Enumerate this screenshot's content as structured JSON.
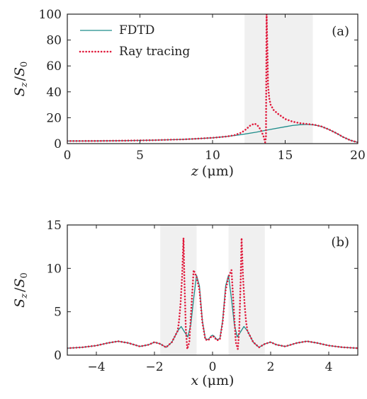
{
  "chart_data": [
    {
      "type": "line",
      "panel_label": "(a)",
      "xlabel_var": "z",
      "xlabel_unit": "(μm)",
      "ylabel_var": "S",
      "ylabel_sub": "z",
      "ylabel_den": "S",
      "ylabel_den_sub": "0",
      "xlim": [
        0,
        20
      ],
      "ylim": [
        0,
        100
      ],
      "xticks": [
        0,
        5,
        10,
        15,
        20
      ],
      "yticks": [
        0,
        20,
        40,
        60,
        80,
        100
      ],
      "xtick_labels": [
        "0",
        "5",
        "10",
        "15",
        "20"
      ],
      "ytick_labels": [
        "0",
        "20",
        "40",
        "60",
        "80",
        "100"
      ],
      "shaded_regions": [
        [
          12.2,
          16.9
        ]
      ],
      "legend_position": "top-left",
      "series": [
        {
          "name": "FDTD",
          "color": "#1e8c8a",
          "style": "solid",
          "x": [
            0,
            2,
            4,
            6,
            8,
            9,
            10,
            11,
            12,
            13,
            14,
            15,
            15.5,
            16,
            16.5,
            17,
            17.5,
            18,
            18.5,
            19,
            19.5,
            20
          ],
          "y": [
            2,
            2.1,
            2.3,
            2.7,
            3.3,
            3.8,
            4.5,
            5.5,
            7,
            8.8,
            11,
            13,
            14,
            14.6,
            14.8,
            14.4,
            13.2,
            11,
            8.2,
            5,
            2.5,
            1
          ]
        },
        {
          "name": "Ray tracing",
          "color": "#e01b3c",
          "style": "dotted",
          "x": [
            0,
            2,
            4,
            6,
            8,
            9,
            10,
            11,
            11.5,
            12,
            12.3,
            12.6,
            12.9,
            13.1,
            13.3,
            13.5,
            13.62,
            13.68,
            13.72,
            13.78,
            13.82,
            13.9,
            14,
            14.2,
            14.5,
            15,
            15.5,
            16,
            16.5,
            17,
            17.5,
            18,
            18.5,
            19,
            19.5,
            20
          ],
          "y": [
            2,
            2.1,
            2.3,
            2.7,
            3.3,
            3.8,
            4.5,
            5.5,
            6.5,
            8.5,
            11,
            14,
            15.5,
            14,
            11,
            6,
            1,
            5,
            100,
            70,
            45,
            35,
            30,
            26,
            23,
            19,
            17,
            15.8,
            15.2,
            14.6,
            13.2,
            11,
            8.2,
            5,
            2.5,
            1
          ]
        }
      ]
    },
    {
      "type": "line",
      "panel_label": "(b)",
      "xlabel_var": "x",
      "xlabel_unit": "(μm)",
      "ylabel_var": "S",
      "ylabel_sub": "z",
      "ylabel_den": "S",
      "ylabel_den_sub": "0",
      "xlim": [
        -5,
        5
      ],
      "ylim": [
        0,
        15
      ],
      "xticks": [
        -4,
        -2,
        0,
        2,
        4
      ],
      "yticks": [
        0,
        5,
        10,
        15
      ],
      "xtick_labels": [
        "−4",
        "−2",
        "0",
        "2",
        "4"
      ],
      "ytick_labels": [
        "0",
        "5",
        "10",
        "15"
      ],
      "shaded_regions": [
        [
          -1.8,
          -0.55
        ],
        [
          0.55,
          1.8
        ]
      ],
      "series": [
        {
          "name": "FDTD",
          "color": "#1e8c8a",
          "style": "solid",
          "x": [
            -5,
            -4.5,
            -4,
            -3.6,
            -3.25,
            -2.9,
            -2.5,
            -2.2,
            -2.0,
            -1.8,
            -1.6,
            -1.4,
            -1.2,
            -1.08,
            -0.95,
            -0.85,
            -0.75,
            -0.65,
            -0.55,
            -0.45,
            -0.35,
            -0.25,
            -0.15,
            -0.05,
            0,
            0.05,
            0.15,
            0.25,
            0.35,
            0.45,
            0.55,
            0.65,
            0.75,
            0.85,
            0.95,
            1.08,
            1.2,
            1.4,
            1.6,
            1.8,
            2.0,
            2.2,
            2.5,
            2.9,
            3.25,
            3.6,
            4,
            4.5,
            5
          ],
          "y": [
            0.8,
            0.9,
            1.1,
            1.4,
            1.6,
            1.4,
            1.0,
            1.2,
            1.5,
            1.3,
            0.9,
            1.5,
            2.8,
            3.3,
            2.6,
            2.1,
            3.5,
            6.5,
            9.2,
            8.0,
            4.0,
            1.9,
            1.8,
            2.2,
            2.3,
            2.2,
            1.8,
            1.9,
            4.0,
            8.0,
            9.2,
            6.5,
            3.5,
            2.1,
            2.6,
            3.3,
            2.8,
            1.5,
            0.9,
            1.3,
            1.5,
            1.2,
            1.0,
            1.4,
            1.6,
            1.4,
            1.1,
            0.9,
            0.8
          ]
        },
        {
          "name": "Ray tracing",
          "color": "#e01b3c",
          "style": "dotted",
          "x": [
            -5,
            -4.5,
            -4,
            -3.6,
            -3.25,
            -2.9,
            -2.5,
            -2.2,
            -2.0,
            -1.8,
            -1.6,
            -1.4,
            -1.2,
            -1.15,
            -1.1,
            -1.05,
            -1.0,
            -0.97,
            -0.92,
            -0.87,
            -0.8,
            -0.72,
            -0.65,
            -0.55,
            -0.45,
            -0.35,
            -0.25,
            -0.15,
            -0.05,
            0,
            0.05,
            0.15,
            0.25,
            0.35,
            0.45,
            0.55,
            0.65,
            0.72,
            0.8,
            0.87,
            0.92,
            0.97,
            1.0,
            1.05,
            1.1,
            1.15,
            1.2,
            1.4,
            1.6,
            1.8,
            2.0,
            2.2,
            2.5,
            2.9,
            3.25,
            3.6,
            4,
            4.5,
            5
          ],
          "y": [
            0.8,
            0.9,
            1.1,
            1.4,
            1.6,
            1.4,
            1.0,
            1.2,
            1.5,
            1.3,
            0.9,
            1.5,
            2.8,
            4.0,
            6.0,
            9.0,
            13.5,
            9.0,
            3.0,
            0.7,
            1.5,
            6.0,
            9.8,
            9.0,
            7.5,
            3.8,
            1.8,
            1.7,
            2.1,
            2.2,
            2.1,
            1.7,
            1.8,
            3.8,
            7.5,
            9.0,
            9.8,
            6.0,
            1.5,
            0.7,
            3.0,
            9.0,
            13.5,
            9.0,
            6.0,
            4.0,
            2.8,
            1.5,
            0.9,
            1.3,
            1.5,
            1.2,
            1.0,
            1.4,
            1.6,
            1.4,
            1.1,
            0.9,
            0.8
          ]
        }
      ]
    }
  ]
}
